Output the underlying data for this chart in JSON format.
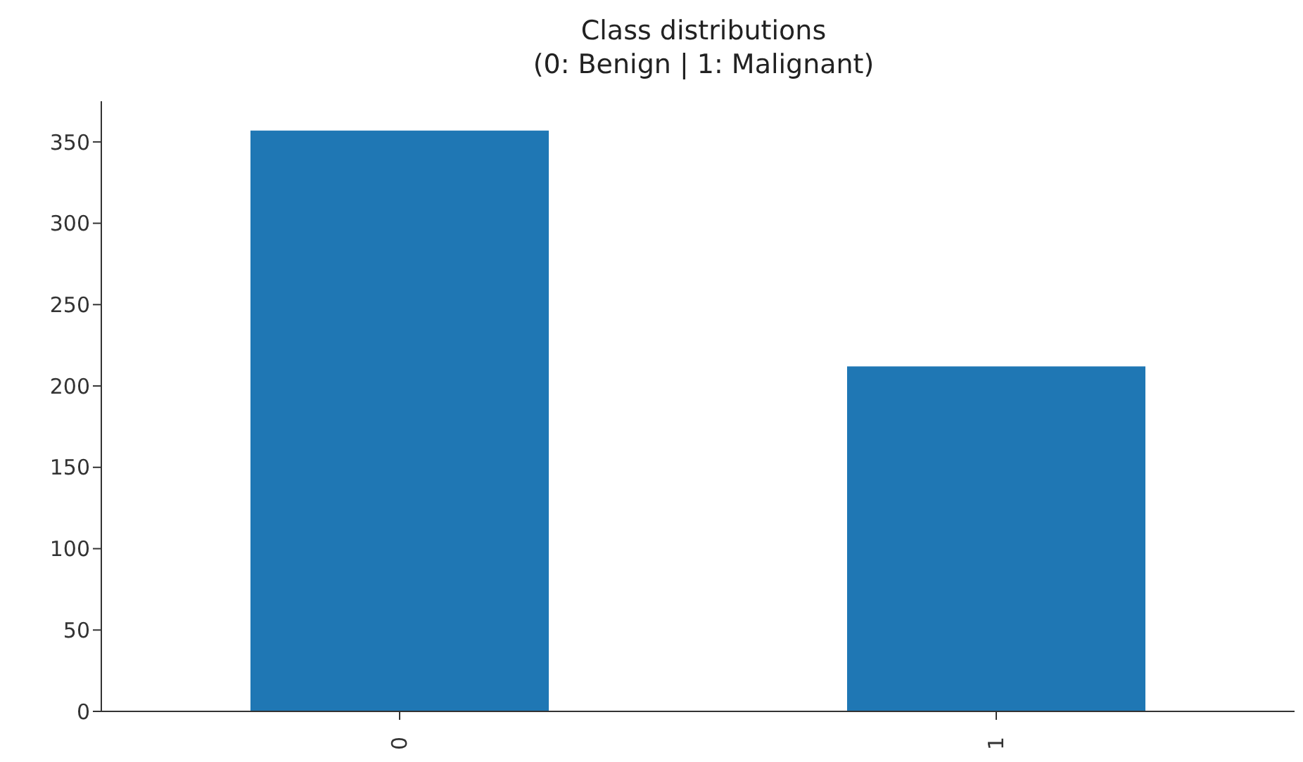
{
  "chart_data": {
    "type": "bar",
    "title": "Class distributions\n(0: Benign | 1: Malignant)",
    "categories": [
      "0",
      "1"
    ],
    "values": [
      357,
      212
    ],
    "color": "#1f77b4",
    "ylim": [
      0,
      375
    ],
    "yticks": [
      0,
      50,
      100,
      150,
      200,
      250,
      300,
      350
    ],
    "grid": false
  }
}
